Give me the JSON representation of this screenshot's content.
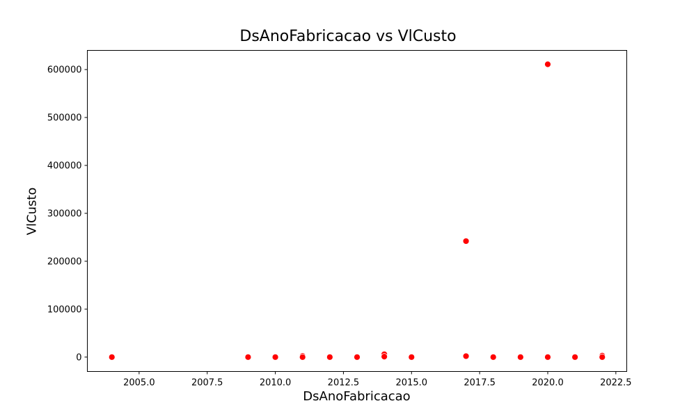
{
  "chart_data": {
    "type": "scatter",
    "title": "DsAnoFabricacao vs VlCusto",
    "xlabel": "DsAnoFabricacao",
    "ylabel": "VlCusto",
    "xlim": [
      2003.1,
      2022.9
    ],
    "ylim": [
      -30000,
      640000
    ],
    "xticks": [
      2005.0,
      2007.5,
      2010.0,
      2012.5,
      2015.0,
      2017.5,
      2020.0,
      2022.5
    ],
    "xtick_labels": [
      "2005.0",
      "2007.5",
      "2010.0",
      "2012.5",
      "2015.0",
      "2017.5",
      "2020.0",
      "2022.5"
    ],
    "yticks": [
      0,
      100000,
      200000,
      300000,
      400000,
      500000,
      600000
    ],
    "ytick_labels": [
      "0",
      "100000",
      "200000",
      "300000",
      "400000",
      "500000",
      "600000"
    ],
    "marker_color": "#ff0000",
    "grid": false,
    "points": [
      {
        "x": 2004,
        "y": 0
      },
      {
        "x": 2009,
        "y": 0
      },
      {
        "x": 2010,
        "y": 0
      },
      {
        "x": 2011,
        "y": 2500
      },
      {
        "x": 2011,
        "y": 0
      },
      {
        "x": 2012,
        "y": 0
      },
      {
        "x": 2013,
        "y": 0
      },
      {
        "x": 2014,
        "y": 6000
      },
      {
        "x": 2014,
        "y": 1000
      },
      {
        "x": 2015,
        "y": 0
      },
      {
        "x": 2017,
        "y": 242000
      },
      {
        "x": 2017,
        "y": 2000
      },
      {
        "x": 2018,
        "y": 0
      },
      {
        "x": 2019,
        "y": 0
      },
      {
        "x": 2020,
        "y": 611000
      },
      {
        "x": 2020,
        "y": 0
      },
      {
        "x": 2021,
        "y": 0
      },
      {
        "x": 2022,
        "y": 3000
      },
      {
        "x": 2022,
        "y": 0
      }
    ]
  }
}
